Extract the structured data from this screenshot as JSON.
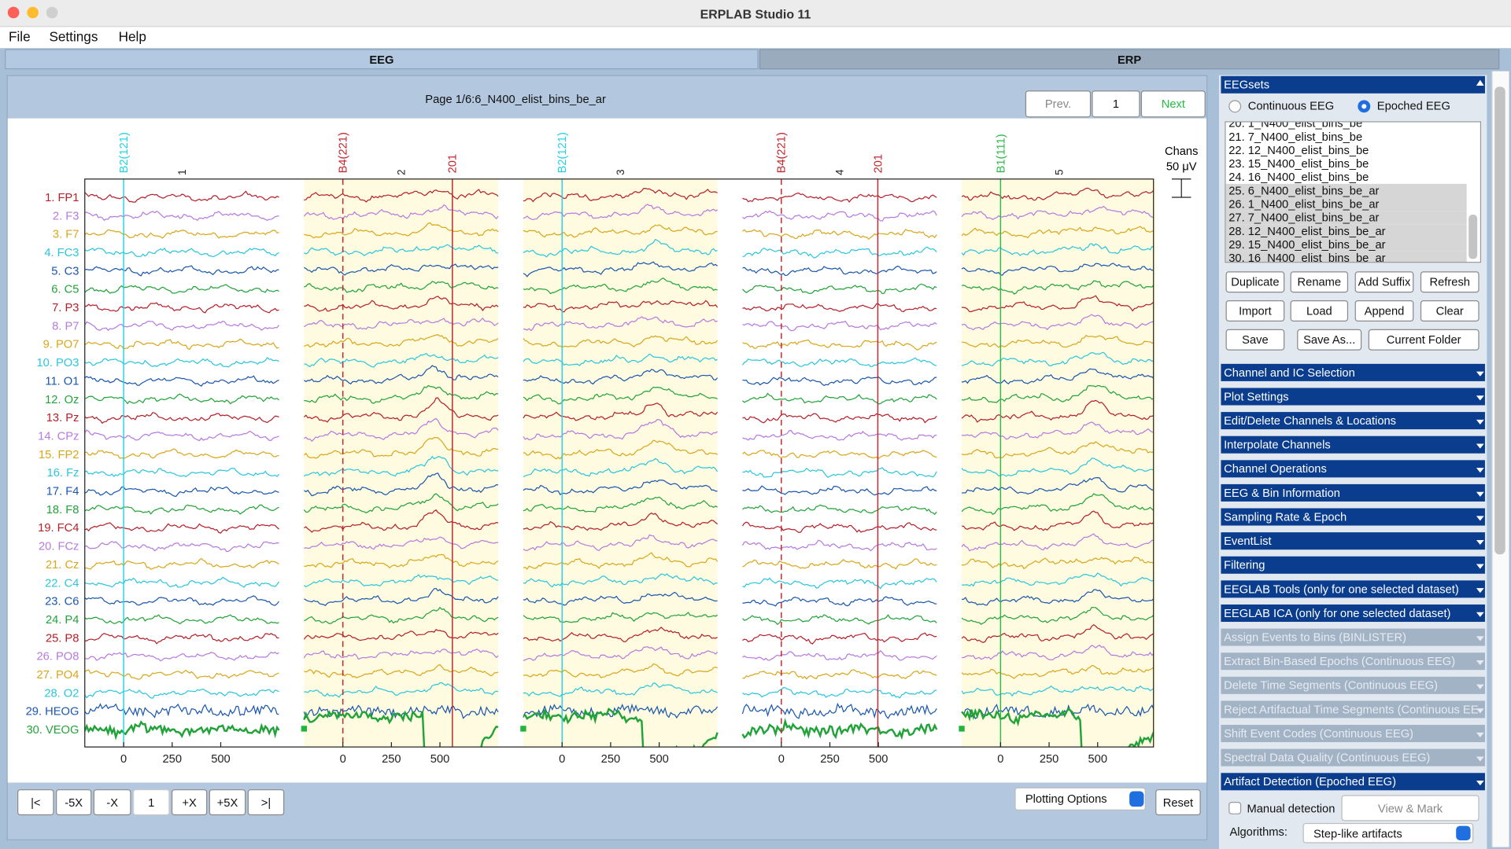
{
  "window": {
    "title": "ERPLAB Studio 11"
  },
  "menu": [
    "File",
    "Settings",
    "Help"
  ],
  "tabs": [
    "EEG",
    "ERP"
  ],
  "viewer": {
    "page_label": "Page 1/6:6_N400_elist_bins_be_ar",
    "prev": "Prev.",
    "page": "1",
    "next": "Next",
    "scale_title": "Chans",
    "scale_value": "50 μV",
    "channels": [
      "1. FP1",
      "2. F3",
      "3. F7",
      "4. FC3",
      "5. C3",
      "6. C5",
      "7. P3",
      "8. P7",
      "9. PO7",
      "10. PO3",
      "11. O1",
      "12. Oz",
      "13. Pz",
      "14. CPz",
      "15. FP2",
      "16. Fz",
      "17. F4",
      "18. F8",
      "19. FC4",
      "20. FCz",
      "21. Cz",
      "22. C4",
      "23. C6",
      "24. P4",
      "25. P8",
      "26. PO8",
      "27. PO4",
      "28. O2",
      "29. HEOG",
      "30. VEOG"
    ],
    "channel_colors": [
      "#b5202a",
      "#b77ade",
      "#d9a71c",
      "#2bc6dc",
      "#1b57ad",
      "#22a33a"
    ],
    "xlim": [
      -200,
      800
    ],
    "xticks": [
      0,
      250,
      500
    ],
    "epochs": [
      {
        "number": "1",
        "marked": false,
        "events": [
          {
            "label": "B2(121)",
            "latency": 0,
            "color": "#25d4e4",
            "dashed": false
          }
        ]
      },
      {
        "number": "2",
        "marked": true,
        "events": [
          {
            "label": "B4(221)",
            "latency": 0,
            "color": "#c0272d",
            "dashed": true
          },
          {
            "label": "201",
            "latency": 564,
            "color": "#c0272d",
            "dashed": false
          }
        ]
      },
      {
        "number": "3",
        "marked": true,
        "events": [
          {
            "label": "B2(121)",
            "latency": 0,
            "color": "#25d4e4",
            "dashed": false
          }
        ]
      },
      {
        "number": "4",
        "marked": false,
        "events": [
          {
            "label": "B4(221)",
            "latency": 0,
            "color": "#c0272d",
            "dashed": true
          },
          {
            "label": "201",
            "latency": 497,
            "color": "#c0272d",
            "dashed": false
          }
        ]
      },
      {
        "number": "5",
        "marked": true,
        "events": [
          {
            "label": "B1(111)",
            "latency": 0,
            "color": "#2cb84a",
            "dashed": false
          }
        ]
      }
    ],
    "nav": [
      "|<",
      "-5X",
      "-X",
      "1",
      "+X",
      "+5X",
      ">|"
    ],
    "plotting_options": "Plotting Options",
    "reset": "Reset"
  },
  "eegsets": {
    "title": "EEGsets",
    "modes": [
      {
        "label": "Continuous EEG",
        "selected": false
      },
      {
        "label": "Epoched EEG",
        "selected": true
      }
    ],
    "datasets": [
      {
        "label": "20. 1_N400_elist_bins_be",
        "selected": false
      },
      {
        "label": "21. 7_N400_elist_bins_be",
        "selected": false
      },
      {
        "label": "22. 12_N400_elist_bins_be",
        "selected": false
      },
      {
        "label": "23. 15_N400_elist_bins_be",
        "selected": false
      },
      {
        "label": "24. 16_N400_elist_bins_be",
        "selected": false
      },
      {
        "label": "25. 6_N400_elist_bins_be_ar",
        "selected": true
      },
      {
        "label": "26. 1_N400_elist_bins_be_ar",
        "selected": true
      },
      {
        "label": "27. 7_N400_elist_bins_be_ar",
        "selected": true
      },
      {
        "label": "28. 12_N400_elist_bins_be_ar",
        "selected": true
      },
      {
        "label": "29. 15_N400_elist_bins_be_ar",
        "selected": true
      },
      {
        "label": "30. 16_N400_elist_bins_be_ar",
        "selected": true
      }
    ],
    "buttons": [
      [
        "Duplicate",
        "Rename",
        "Add Suffix",
        "Refresh"
      ],
      [
        "Import",
        "Load",
        "Append",
        "Clear"
      ],
      [
        "Save",
        "Save As...",
        "Current Folder"
      ]
    ]
  },
  "panels": [
    {
      "label": "Channel  and IC Selection",
      "enabled": true
    },
    {
      "label": "Plot Settings",
      "enabled": true
    },
    {
      "label": "Edit/Delete Channels & Locations",
      "enabled": true
    },
    {
      "label": "Interpolate Channels",
      "enabled": true
    },
    {
      "label": "Channel Operations",
      "enabled": true
    },
    {
      "label": "EEG & Bin Information",
      "enabled": true
    },
    {
      "label": "Sampling Rate & Epoch",
      "enabled": true
    },
    {
      "label": "EventList",
      "enabled": true
    },
    {
      "label": "Filtering",
      "enabled": true
    },
    {
      "label": "EEGLAB Tools (only for one selected dataset)",
      "enabled": true
    },
    {
      "label": "EEGLAB ICA (only for one selected dataset)",
      "enabled": true
    },
    {
      "label": "Assign Events to Bins (BINLISTER)",
      "enabled": false
    },
    {
      "label": "Extract Bin-Based Epochs (Continuous EEG)",
      "enabled": false
    },
    {
      "label": "Delete Time Segments (Continuous EEG)",
      "enabled": false
    },
    {
      "label": "Reject Artifactual Time Segments (Continuous EE",
      "enabled": false
    },
    {
      "label": "Shift Event Codes (Continuous EEG)",
      "enabled": false
    },
    {
      "label": "Spectral Data Quality (Continuous EEG)",
      "enabled": false
    },
    {
      "label": "Artifact Detection (Epoched EEG)",
      "enabled": true
    }
  ],
  "artifact": {
    "manual": "Manual detection",
    "view_mark": "View & Mark",
    "algorithms": "Algorithms:",
    "algorithm": "Step-like artifacts"
  }
}
